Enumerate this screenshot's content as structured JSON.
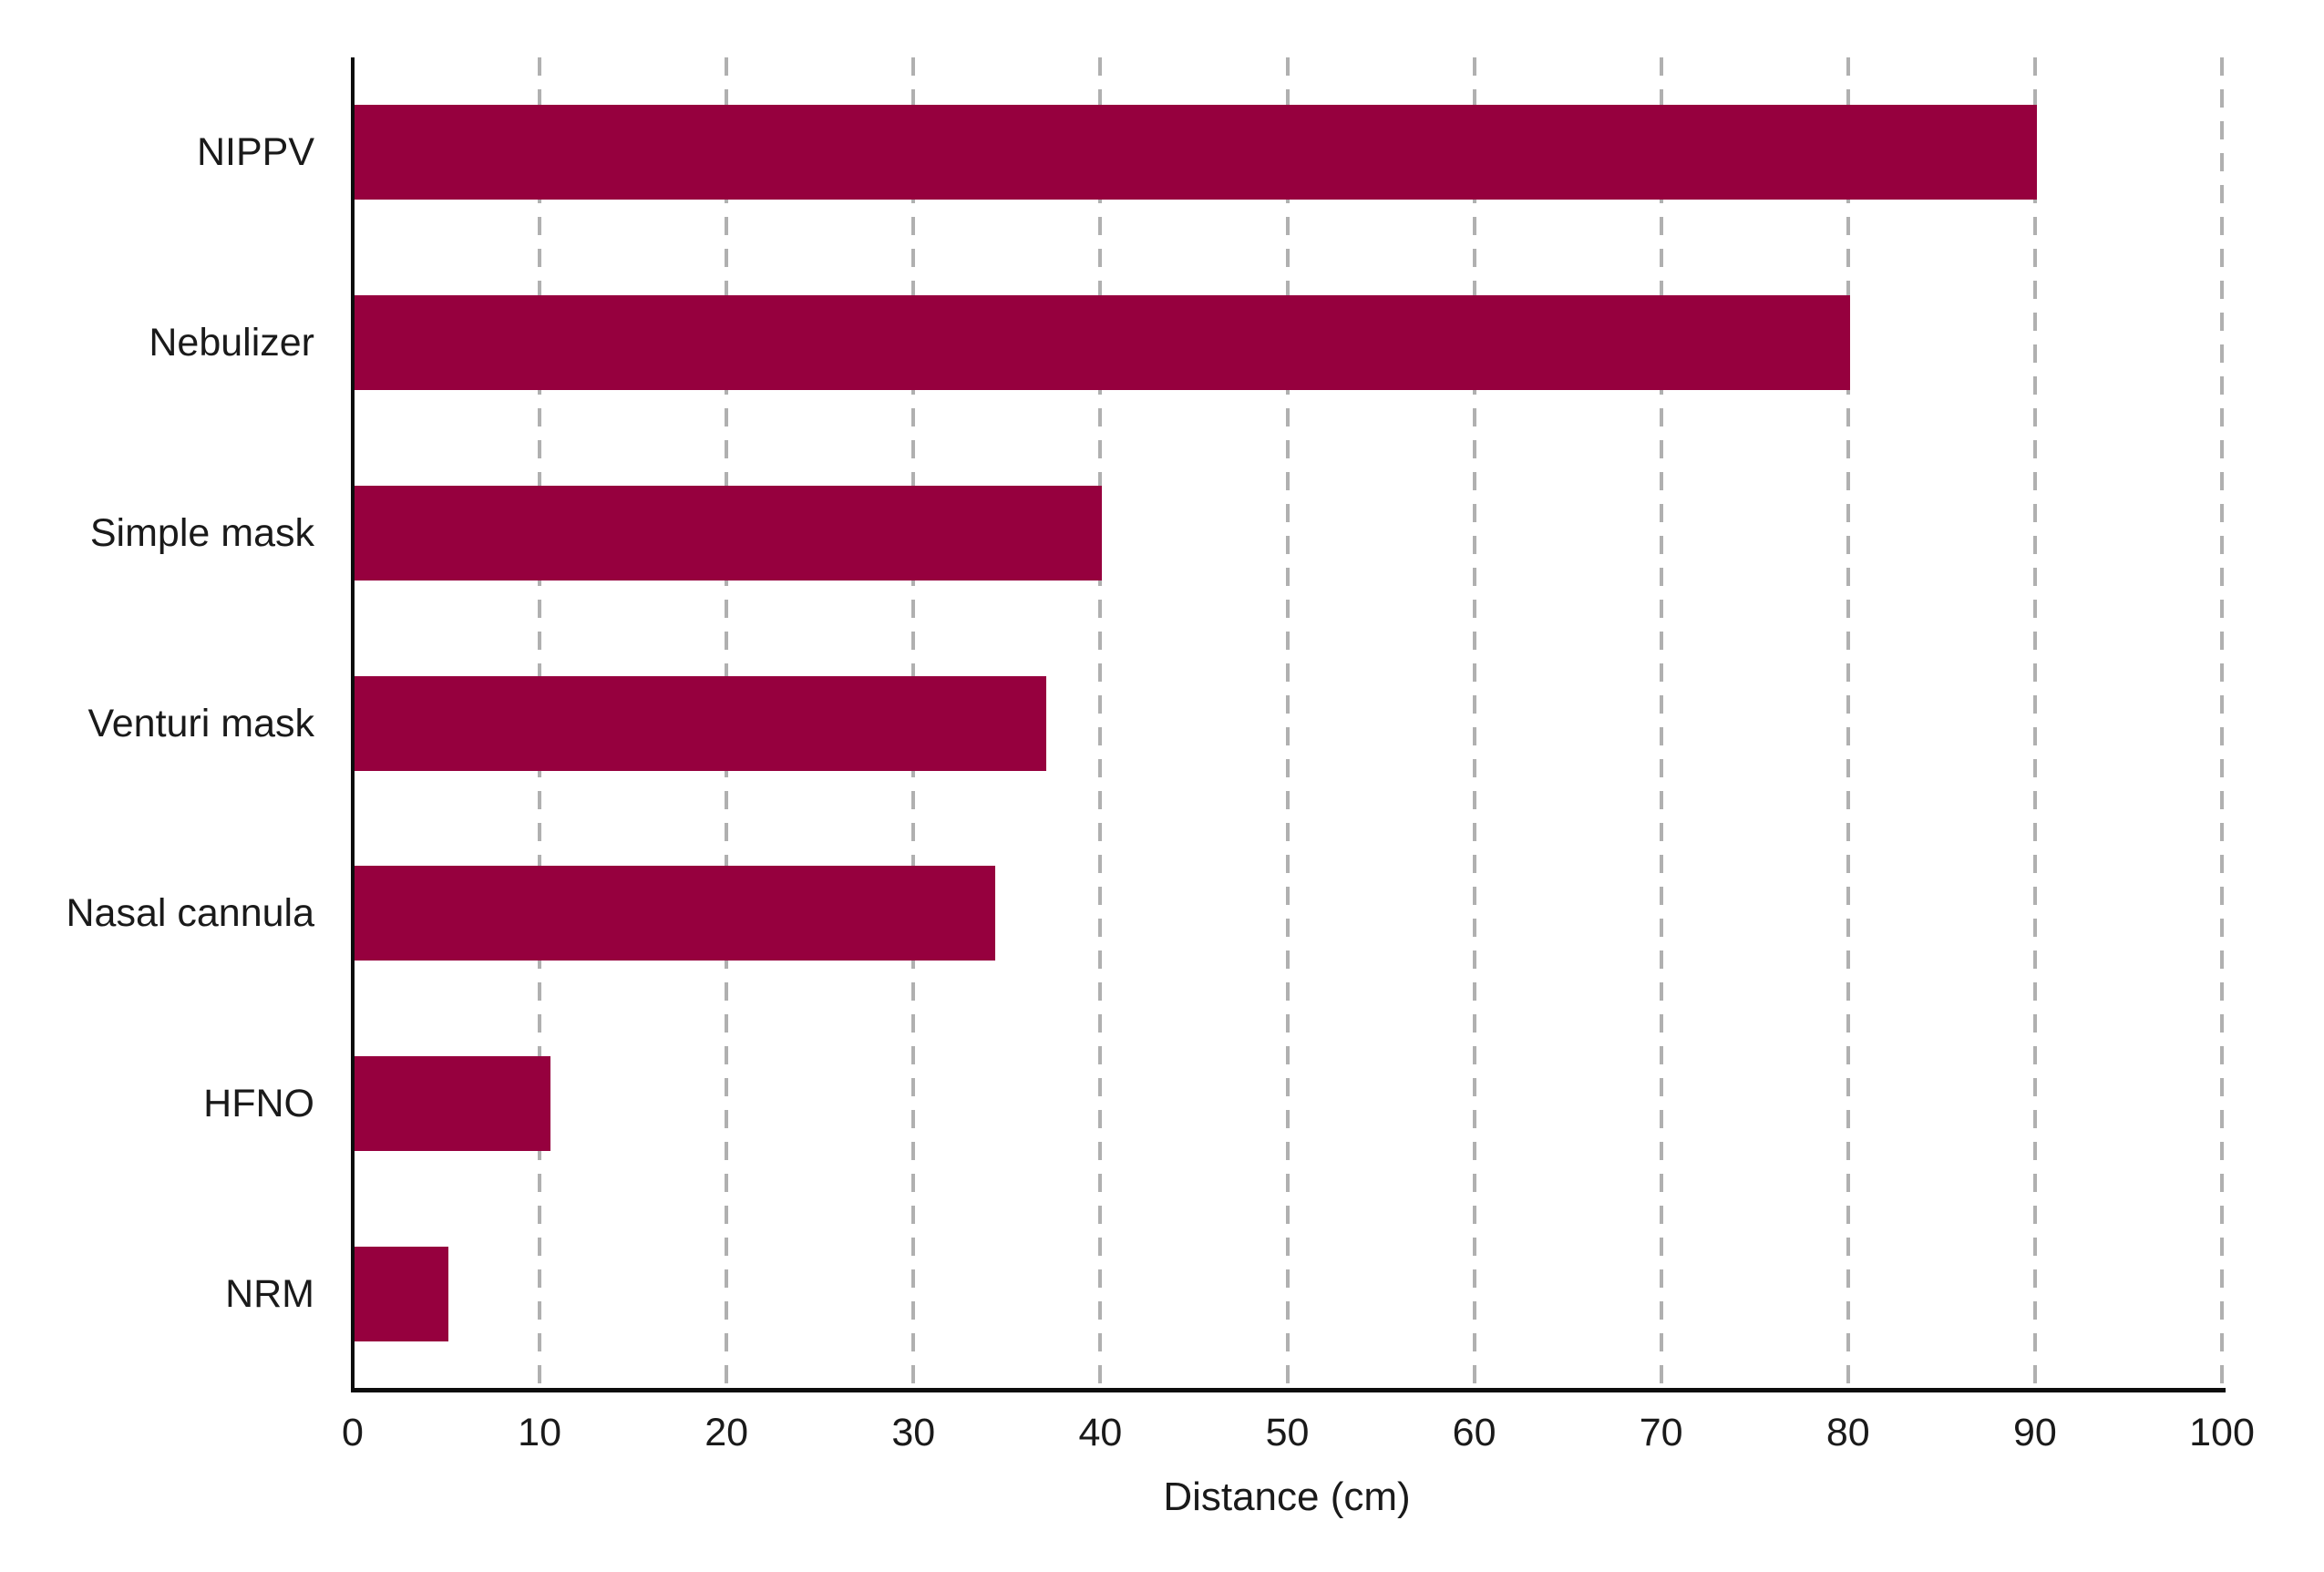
{
  "chart_data": {
    "type": "bar",
    "orientation": "horizontal",
    "title": "",
    "xlabel": "Distance (cm)",
    "ylabel": "",
    "categories": [
      "NIPPV",
      "Nebulizer",
      "Simple mask",
      "Venturi mask",
      "Nasal cannula",
      "HFNO",
      "NRM"
    ],
    "values": [
      90,
      80,
      40,
      37,
      34.3,
      10.5,
      5
    ],
    "xlim": [
      0,
      100
    ],
    "xticks": [
      0,
      10,
      20,
      30,
      40,
      50,
      60,
      70,
      80,
      90,
      100
    ],
    "grid": "vertical-dashed",
    "legend": "none",
    "colors": {
      "bar": "#96003E",
      "axis": "#0d0d0d",
      "gridline": "#b0b0b0",
      "text": "#1a1a1a",
      "background": "#ffffff"
    }
  }
}
